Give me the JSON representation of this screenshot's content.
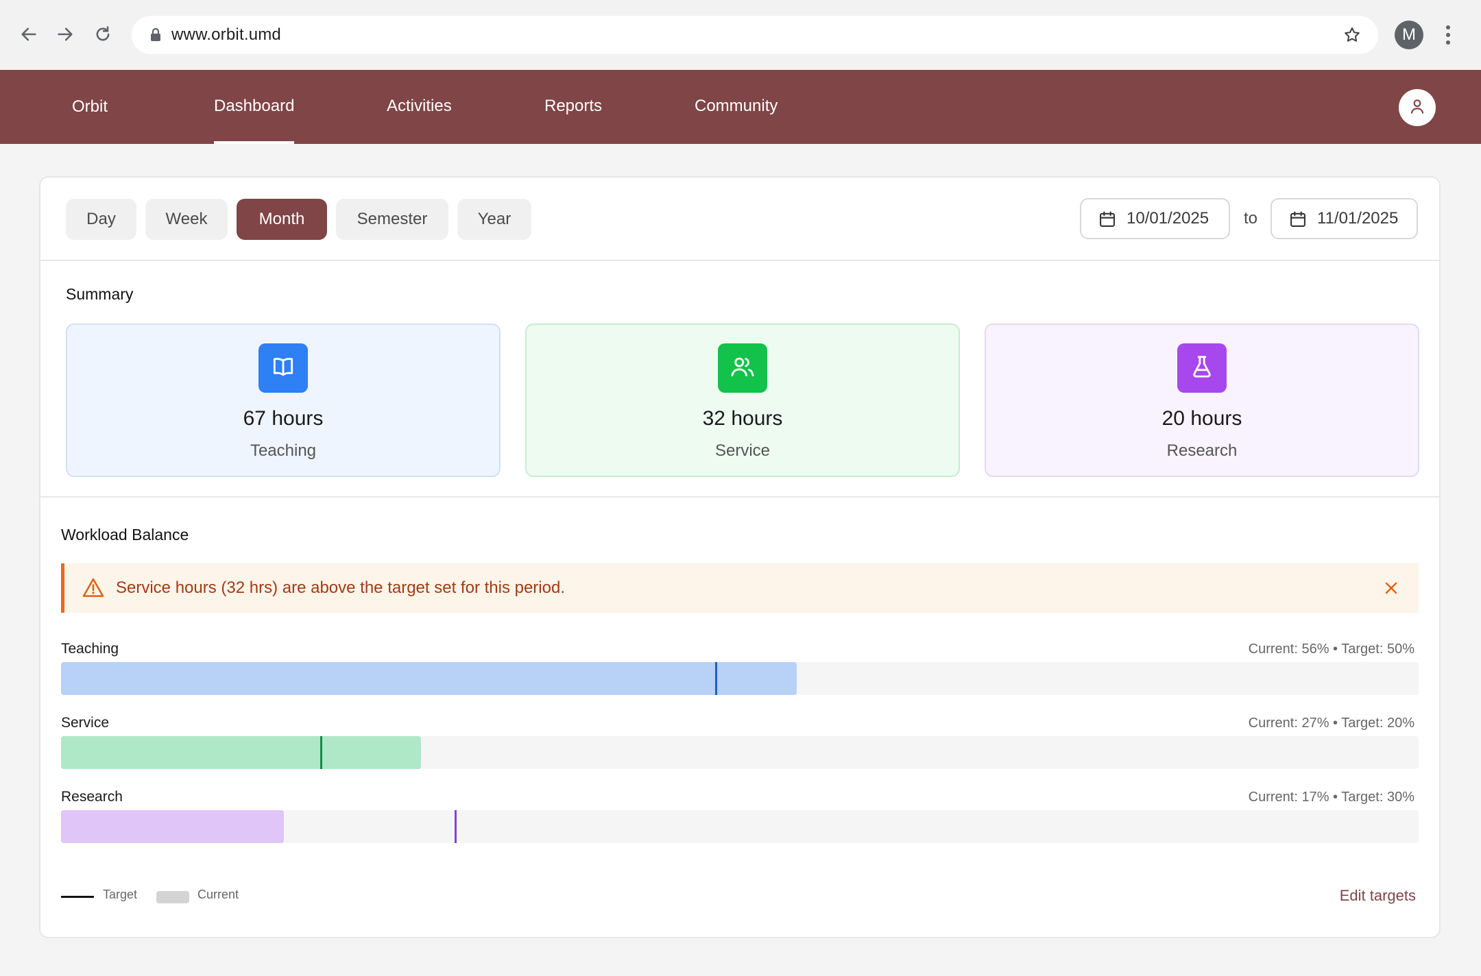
{
  "browser": {
    "url": "www.orbit.umd",
    "profile_initial": "M"
  },
  "app": {
    "brand": "Orbit",
    "nav": [
      {
        "label": "Dashboard",
        "active": true
      },
      {
        "label": "Activities"
      },
      {
        "label": "Reports"
      },
      {
        "label": "Community"
      }
    ]
  },
  "toolbar": {
    "periods": [
      "Day",
      "Week",
      "Month",
      "Semester",
      "Year"
    ],
    "selected_period": "Month",
    "date_from": "10/01/2025",
    "to_label": "to",
    "date_to": "11/01/2025"
  },
  "summary": {
    "title": "Summary",
    "cards": [
      {
        "value": "67 hours",
        "label": "Teaching",
        "icon": "book-icon",
        "tile_color": "#2f7ff5",
        "bg": "#eef5fe",
        "border": "#cfe0f6"
      },
      {
        "value": "32 hours",
        "label": "Service",
        "icon": "users-icon",
        "tile_color": "#12c24a",
        "bg": "#edfbf1",
        "border": "#c7ecd3"
      },
      {
        "value": "20 hours",
        "label": "Research",
        "icon": "flask-icon",
        "tile_color": "#a747ee",
        "bg": "#f8f3fe",
        "border": "#e6d8f4"
      }
    ]
  },
  "workload": {
    "title": "Workload Balance",
    "alert": "Service hours (32 hrs) are above the target set for this period.",
    "bars": [
      {
        "label": "Teaching",
        "meta": "Current: 56% • Target: 50%",
        "current_fraction": 0.542,
        "target_fraction": 0.482,
        "fill": "#b7d1f7",
        "marker": "#1f5fbf"
      },
      {
        "label": "Service",
        "meta": "Current: 27% • Target: 20%",
        "current_fraction": 0.265,
        "target_fraction": 0.191,
        "fill": "#afe8c6",
        "marker": "#15894a"
      },
      {
        "label": "Research",
        "meta": "Current: 17% • Target: 30%",
        "current_fraction": 0.164,
        "target_fraction": 0.29,
        "fill": "#e0c5f8",
        "marker": "#8a3fd6"
      }
    ],
    "legend_target": "Target",
    "legend_current": "Current",
    "edit_link": "Edit targets"
  }
}
